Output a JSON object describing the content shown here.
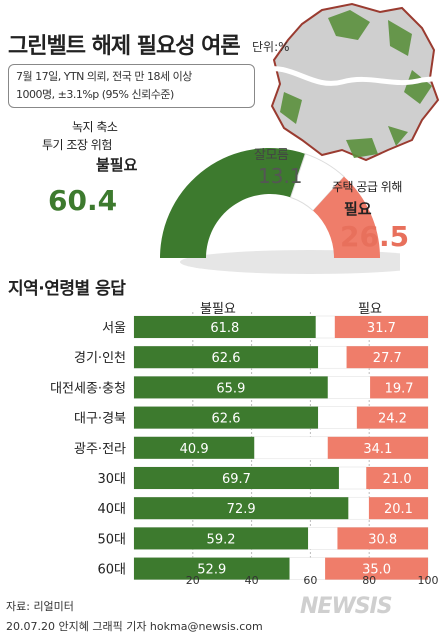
{
  "header": {
    "title": "그린벨트 해제 필요성 여론",
    "unit": "단위:%",
    "info_line1": "7월 17일, YTN  의뢰, 전국 만 18세 이상",
    "info_line2": "1000명, ±3.1%p (95% 신뢰수준)"
  },
  "summary": {
    "unnecessary_reason1": "녹지 축소",
    "unnecessary_reason2": "투기 조장 위험",
    "unnecessary_label": "불필요",
    "unnecessary_value": "60.4",
    "dontknow_label": "잘모름",
    "dontknow_value": "13.1",
    "necessary_reason": "주택 공급 위해",
    "necessary_label": "필요",
    "necessary_value": "26.5"
  },
  "section_title": "지역·연령별 응답",
  "legend": {
    "left": "불필요",
    "right": "필요"
  },
  "footer": {
    "source": "자료: 리얼미터",
    "credit": "20.07.20 안지혜 그래픽 기자 hokma@newsis.com",
    "logo": "NEWSIS"
  },
  "chart_data": [
    {
      "type": "pie",
      "categories": [
        "불필요",
        "잘모름",
        "필요"
      ],
      "values": [
        60.4,
        13.1,
        26.5
      ],
      "colors": [
        "#3d7a2e",
        "#ffffff",
        "#ef7d6a"
      ]
    },
    {
      "type": "bar",
      "orientation": "horizontal-stacked",
      "categories": [
        "서울",
        "경기·인천",
        "대전세종·충청",
        "대구·경북",
        "광주·전라",
        "30대",
        "40대",
        "50대",
        "60대"
      ],
      "series": [
        {
          "name": "불필요",
          "values": [
            61.8,
            62.6,
            65.9,
            62.6,
            40.9,
            69.7,
            72.9,
            59.2,
            52.9
          ],
          "color": "#3d7a2e"
        },
        {
          "name": "필요",
          "values": [
            31.7,
            27.7,
            19.7,
            24.2,
            34.1,
            21.0,
            20.1,
            30.8,
            35.0
          ],
          "color": "#ef7d6a"
        }
      ],
      "xlim": [
        0,
        100
      ],
      "xticks": [
        "20",
        "40",
        "60",
        "80",
        "100"
      ]
    }
  ]
}
